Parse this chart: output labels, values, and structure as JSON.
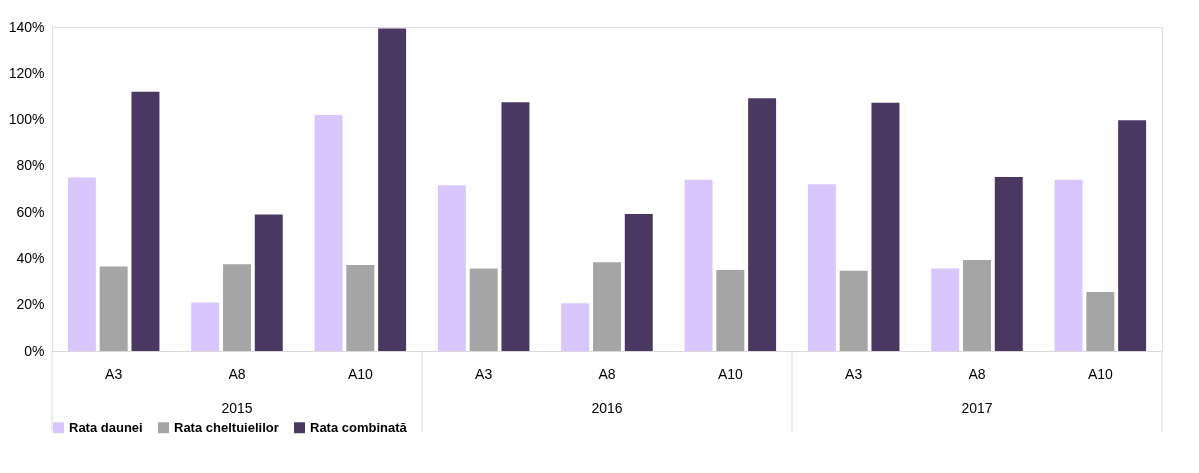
{
  "chart_data": {
    "type": "bar",
    "categories": [
      "A3",
      "A8",
      "A10",
      "A3",
      "A8",
      "A10",
      "A3",
      "A8",
      "A10"
    ],
    "annotations": [
      "2015",
      "2016",
      "2017"
    ],
    "series": [
      {
        "name": "Rata daunei",
        "color": "#d9c6fd",
        "values": [
          75,
          21,
          102,
          71.6,
          20.6,
          74,
          72,
          35.6,
          74
        ]
      },
      {
        "name": "Rata cheltuielilor",
        "color": "#a5a5a5",
        "values": [
          36.5,
          37.5,
          37.2,
          35.6,
          38.3,
          35,
          34.7,
          39.3,
          25.5
        ]
      },
      {
        "name": "Rata combinată",
        "color": "#4b3862",
        "values": [
          112,
          59,
          139.3,
          107.5,
          59.2,
          109.2,
          107.3,
          75.2,
          99.7
        ]
      }
    ],
    "ylim": [
      0,
      140
    ],
    "yticks": [
      {
        "value": 0,
        "label": "0%"
      },
      {
        "value": 20,
        "label": "20%"
      },
      {
        "value": 40,
        "label": "40%"
      },
      {
        "value": 60,
        "label": "60%"
      },
      {
        "value": 80,
        "label": "80%"
      },
      {
        "value": 100,
        "label": "100%"
      },
      {
        "value": 120,
        "label": "120%"
      },
      {
        "value": 140,
        "label": "140%"
      }
    ],
    "grid": false,
    "legend": "bottom"
  }
}
